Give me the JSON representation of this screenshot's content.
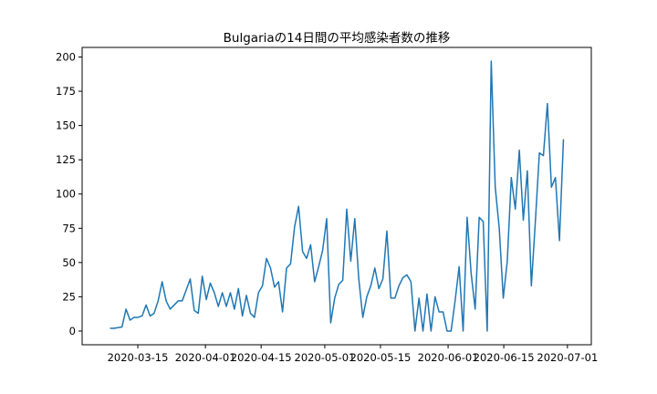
{
  "chart_data": {
    "type": "line",
    "title": "Bulgariaの14日間の平均感染者数の推移",
    "xlabel": "",
    "ylabel": "",
    "x_start": "2020-03-08",
    "x_end": "2020-06-30",
    "xlim": [
      "2020-03-01",
      "2020-07-07"
    ],
    "ylim": [
      -10,
      207
    ],
    "yticks": [
      0,
      25,
      50,
      75,
      100,
      125,
      150,
      175,
      200
    ],
    "xticks": [
      "2020-03-15",
      "2020-04-01",
      "2020-04-15",
      "2020-05-01",
      "2020-05-15",
      "2020-06-01",
      "2020-06-15",
      "2020-07-01"
    ],
    "grid": false,
    "series": [
      {
        "name": "",
        "color": "#1f77b4",
        "values": [
          2,
          2,
          2.5,
          3,
          16,
          8,
          10,
          10,
          11,
          19,
          11,
          13,
          22,
          36,
          22,
          16,
          19,
          22,
          22,
          30,
          38,
          15,
          13,
          40,
          23,
          35,
          28,
          18,
          28,
          18,
          28,
          16,
          31,
          11,
          26,
          13,
          10,
          28,
          33,
          53,
          46,
          32,
          36,
          14,
          46,
          49,
          76,
          91,
          58,
          53,
          63,
          36,
          47,
          59,
          82,
          6,
          24,
          34,
          37,
          89,
          51,
          82,
          38,
          10,
          25,
          33,
          46,
          31,
          38,
          73,
          24,
          24,
          33,
          39,
          41,
          36,
          0,
          24,
          0,
          27,
          0,
          25,
          14,
          14,
          0,
          0,
          22,
          47,
          0,
          83,
          42,
          16,
          83,
          80,
          0,
          197,
          105,
          75,
          24,
          51,
          112,
          89,
          132,
          81,
          117,
          33,
          80,
          130,
          128,
          166,
          105,
          112,
          66,
          140
        ]
      }
    ]
  }
}
